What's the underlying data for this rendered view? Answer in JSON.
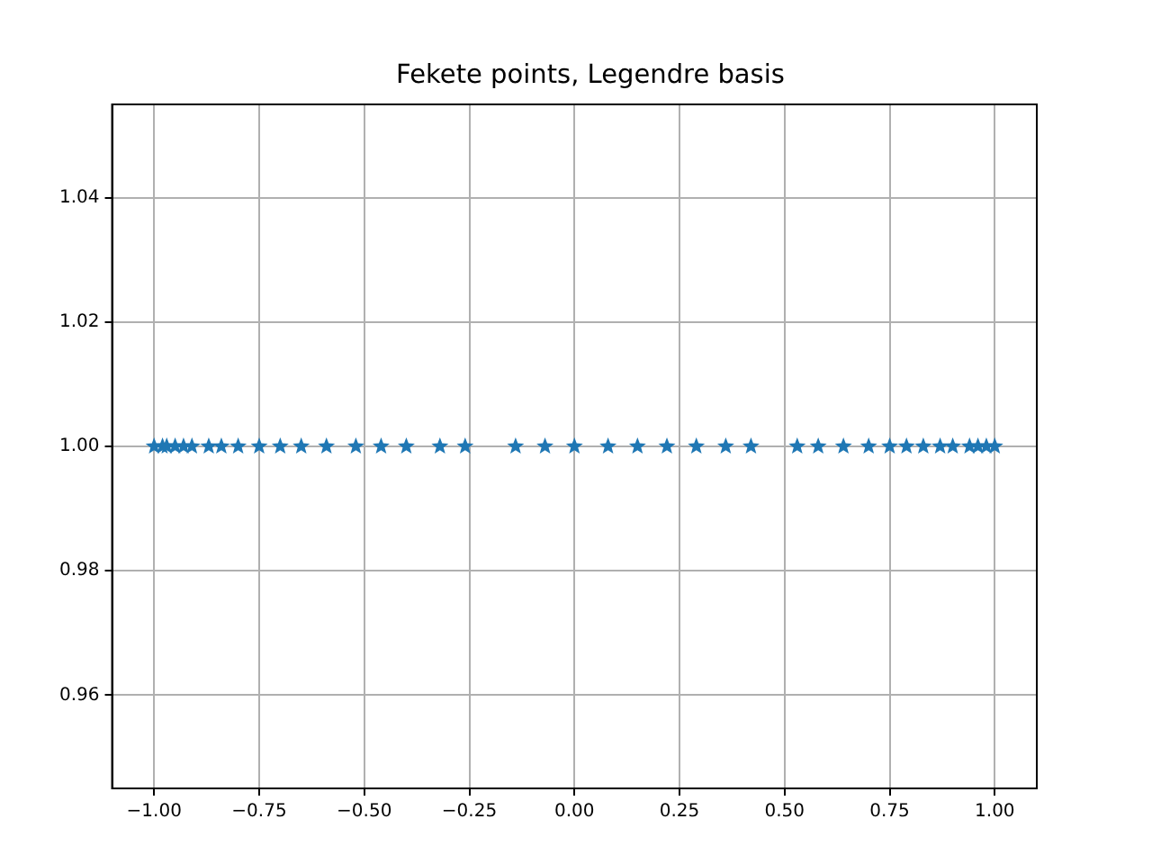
{
  "chart_data": {
    "type": "scatter",
    "title": "Fekete points, Legendre basis",
    "x": [
      -1.0,
      -0.98,
      -0.97,
      -0.95,
      -0.93,
      -0.91,
      -0.87,
      -0.84,
      -0.8,
      -0.75,
      -0.7,
      -0.65,
      -0.59,
      -0.52,
      -0.46,
      -0.4,
      -0.32,
      -0.26,
      -0.14,
      -0.07,
      0.0,
      0.08,
      0.15,
      0.22,
      0.29,
      0.36,
      0.42,
      0.53,
      0.58,
      0.64,
      0.7,
      0.75,
      0.79,
      0.83,
      0.87,
      0.9,
      0.94,
      0.96,
      0.98,
      1.0
    ],
    "series": [
      {
        "color": "#1f77b4",
        "values": [
          1,
          1,
          1,
          1,
          1,
          1,
          1,
          1,
          1,
          1,
          1,
          1,
          1,
          1,
          1,
          1,
          1,
          1,
          1,
          1,
          1,
          1,
          1,
          1,
          1,
          1,
          1,
          1,
          1,
          1,
          1,
          1,
          1,
          1,
          1,
          1,
          1,
          1,
          1,
          1
        ]
      }
    ],
    "xlim": [
      -1.1,
      1.1
    ],
    "ylim": [
      0.945,
      1.055
    ],
    "xticks": [
      {
        "value": -1,
        "label": "−1.00"
      },
      {
        "value": -0.75,
        "label": "−0.75"
      },
      {
        "value": -0.5,
        "label": "−0.50"
      },
      {
        "value": -0.25,
        "label": "−0.25"
      },
      {
        "value": 0,
        "label": "0.00"
      },
      {
        "value": 0.25,
        "label": "0.25"
      },
      {
        "value": 0.5,
        "label": "0.50"
      },
      {
        "value": 0.75,
        "label": "0.75"
      },
      {
        "value": 1,
        "label": "1.00"
      }
    ],
    "yticks": [
      {
        "value": 0.96,
        "label": "0.96"
      },
      {
        "value": 0.98,
        "label": "0.98"
      },
      {
        "value": 1,
        "label": "1.00"
      },
      {
        "value": 1.02,
        "label": "1.02"
      },
      {
        "value": 1.04,
        "label": "1.04"
      }
    ],
    "grid": true,
    "marker": "star",
    "legend": false
  }
}
